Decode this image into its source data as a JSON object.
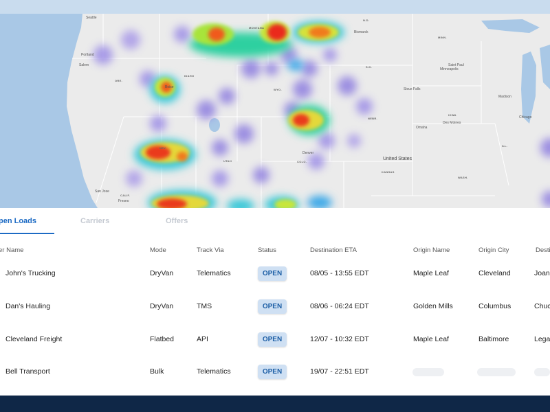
{
  "map": {
    "country_label": "United States",
    "cities": [
      {
        "name": "Seattle"
      },
      {
        "name": "Portland"
      },
      {
        "name": "Salem"
      },
      {
        "name": "Boise"
      },
      {
        "name": "Denver"
      },
      {
        "name": "Bismarck"
      },
      {
        "name": "Saint Paul"
      },
      {
        "name": "Minneapolis"
      },
      {
        "name": "Sioux Falls"
      },
      {
        "name": "Des Moines"
      },
      {
        "name": "Omaha"
      },
      {
        "name": "Madison"
      },
      {
        "name": "Chicago"
      },
      {
        "name": "San Jose"
      },
      {
        "name": "Fresno"
      }
    ],
    "states": [
      {
        "name": "MONTANA"
      },
      {
        "name": "N.D."
      },
      {
        "name": "S.D."
      },
      {
        "name": "IDAHO"
      },
      {
        "name": "ORE."
      },
      {
        "name": "WYO."
      },
      {
        "name": "NEBR."
      },
      {
        "name": "IOWA"
      },
      {
        "name": "NEV."
      },
      {
        "name": "UTAH"
      },
      {
        "name": "COLO."
      },
      {
        "name": "KANSAS"
      },
      {
        "name": "ILL."
      },
      {
        "name": "CALIF."
      },
      {
        "name": "MINN."
      },
      {
        "name": "WASH."
      }
    ]
  },
  "tabs": [
    {
      "label": "pen Loads",
      "active": true
    },
    {
      "label": "Carriers",
      "active": false
    },
    {
      "label": "Offers",
      "active": false
    }
  ],
  "table": {
    "headers": [
      "er Name",
      "Mode",
      "Track Via",
      "Status",
      "Destination ETA",
      "Origin Name",
      "Origin City",
      "Desti"
    ],
    "rows": [
      {
        "carrier": "John's Trucking",
        "mode": "DryVan",
        "track": "Telematics",
        "status": "OPEN",
        "eta": "08/05 - 13:55 EDT",
        "origin_name": "Maple Leaf",
        "origin_city": "Cleveland",
        "dest": "Joan'"
      },
      {
        "carrier": "Dan's Hauling",
        "mode": "DryVan",
        "track": "TMS",
        "status": "OPEN",
        "eta": "08/06 - 06:24 EDT",
        "origin_name": "Golden Mills",
        "origin_city": "Columbus",
        "dest": "Chuc"
      },
      {
        "carrier": "Cleveland Freight",
        "mode": "Flatbed",
        "track": "API",
        "status": "OPEN",
        "eta": "12/07 - 10:32 EDT",
        "origin_name": "Maple Leaf",
        "origin_city": "Baltimore",
        "dest": "Lega"
      },
      {
        "carrier": "Bell Transport",
        "mode": "Bulk",
        "track": "Telematics",
        "status": "OPEN",
        "eta": "19/07 - 22:51 EDT",
        "origin_name": "",
        "origin_city": "",
        "dest": ""
      }
    ]
  },
  "colors": {
    "accent": "#1d6bc4",
    "badge_bg": "#cfe0f3",
    "footer": "#0f2747",
    "water": "#a9c8e6",
    "land": "#ebebeb"
  }
}
